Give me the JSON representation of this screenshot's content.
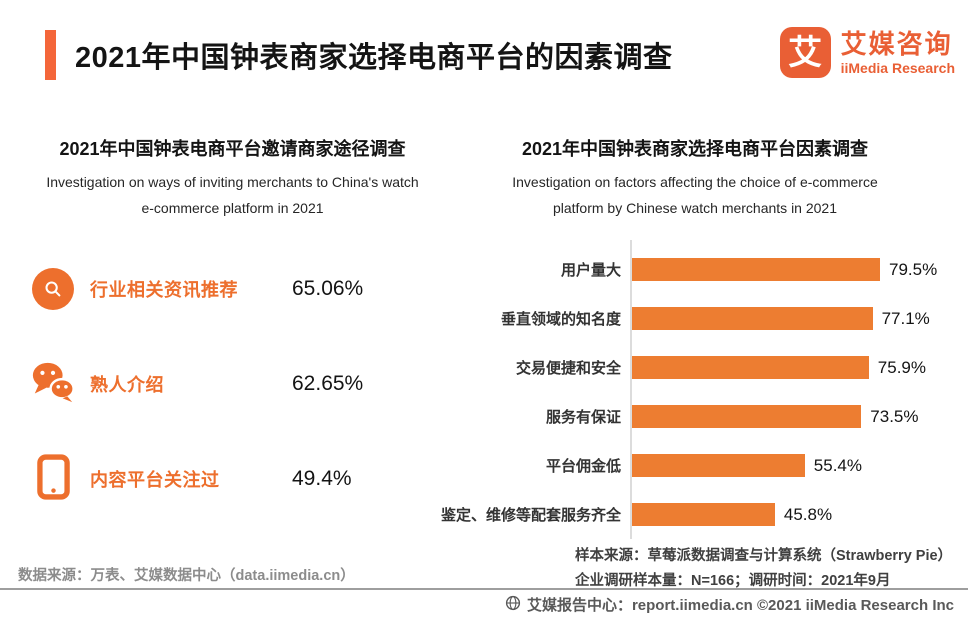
{
  "header": {
    "title": "2021年中国钟表商家选择电商平台的因素调查",
    "logo": {
      "glyph": "艾",
      "brand_cn": "艾媒咨询",
      "brand_en": "iiMedia Research"
    }
  },
  "left_panel": {
    "title": "2021年中国钟表电商平台邀请商家途径调查",
    "subtitle_lines": [
      "Investigation on ways of inviting merchants to China's watch",
      "e-commerce platform in 2021"
    ]
  },
  "right_panel": {
    "title": "2021年中国钟表商家选择电商平台因素调查",
    "subtitle_lines": [
      "Investigation on factors affecting the choice of e-commerce",
      "platform by Chinese watch merchants in 2021"
    ],
    "notes": [
      "样本来源：草莓派数据调查与计算系统（Strawberry Pie）",
      "企业调研样本量：N=166；调研时间：2021年9月"
    ]
  },
  "chart_data": [
    {
      "type": "pictogram-list",
      "title": "2021年中国钟表电商平台邀请商家途径调查",
      "categories": [
        "行业相关资讯推荐",
        "熟人介绍",
        "内容平台关注过"
      ],
      "values": [
        65.06,
        62.65,
        49.4
      ],
      "value_labels": [
        "65.06%",
        "62.65%",
        "49.4%"
      ],
      "icons": [
        "search-icon",
        "wechat-chat-icon",
        "tablet-icon"
      ],
      "accent_color": "#ED6F2D"
    },
    {
      "type": "bar",
      "orientation": "horizontal",
      "title": "2021年中国钟表商家选择电商平台因素调查",
      "categories": [
        "用户量大",
        "垂直领域的知名度",
        "交易便捷和安全",
        "服务有保证",
        "平台佣金低",
        "鉴定、维修等配套服务齐全"
      ],
      "values": [
        79.5,
        77.1,
        75.9,
        73.5,
        55.4,
        45.8
      ],
      "value_labels": [
        "79.5%",
        "77.1%",
        "75.9%",
        "73.5%",
        "55.4%",
        "45.8%"
      ],
      "xlim": [
        0,
        80
      ],
      "grid": false,
      "legend": false,
      "bar_color": "#ED7D31",
      "value_label_position": "end-of-bar"
    }
  ],
  "colors": {
    "accent_bar": "#F4663A",
    "brand_orange": "#E95F35",
    "item_orange": "#ED6F2D",
    "bar_orange": "#ED7D31",
    "title_text": "#141414",
    "muted_gray": "#8C8C8C",
    "footer_gray": "#595959"
  },
  "footer": {
    "data_source": "数据来源：万表、艾媒数据中心（data.iimedia.cn）",
    "report_center": "艾媒报告中心：report.iimedia.cn  ©2021  iiMedia Research Inc"
  }
}
